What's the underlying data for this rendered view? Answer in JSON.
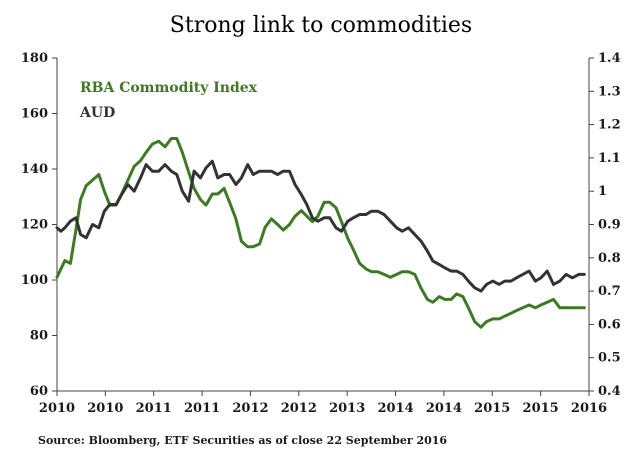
{
  "chart_data": {
    "type": "line",
    "title": "Strong link to commodities",
    "source": "Source: Bloomberg, ETF Securities as of close 22 September 2016",
    "x_tick_labels": [
      "2010",
      "2010",
      "2011",
      "2011",
      "2012",
      "2012",
      "2013",
      "2014",
      "2014",
      "2015",
      "2015",
      "2016"
    ],
    "xlim": [
      2010.0,
      2016.75
    ],
    "y_left": {
      "ylim": [
        60,
        180
      ],
      "ticks": [
        60,
        80,
        100,
        120,
        140,
        160,
        180
      ]
    },
    "y_right": {
      "ylim": [
        0.4,
        1.4
      ],
      "ticks": [
        0.4,
        0.5,
        0.6,
        0.7,
        0.8,
        0.9,
        1,
        1.1,
        1.2,
        1.3,
        1.4
      ]
    },
    "legend_position": "top-left",
    "grid": false,
    "series": [
      {
        "name": "RBA Commodity Index",
        "color": "#3e7a24",
        "axis": "left",
        "x": [
          2010.0,
          2010.05,
          2010.1,
          2010.17,
          2010.24,
          2010.3,
          2010.37,
          2010.45,
          2010.53,
          2010.6,
          2010.67,
          2010.75,
          2010.82,
          2010.9,
          2010.98,
          2011.06,
          2011.13,
          2011.21,
          2011.29,
          2011.37,
          2011.45,
          2011.52,
          2011.59,
          2011.67,
          2011.74,
          2011.82,
          2011.89,
          2011.97,
          2012.04,
          2012.12,
          2012.19,
          2012.27,
          2012.34,
          2012.42,
          2012.49,
          2012.57,
          2012.64,
          2012.72,
          2012.8,
          2012.87,
          2012.95,
          2013.02,
          2013.1,
          2013.17,
          2013.24,
          2013.31,
          2013.39,
          2013.46,
          2013.54,
          2013.61,
          2013.69,
          2013.76,
          2013.84,
          2013.92,
          2013.99,
          2014.07,
          2014.15,
          2014.23,
          2014.31,
          2014.38,
          2014.46,
          2014.54,
          2014.62,
          2014.7,
          2014.77,
          2014.85,
          2014.92,
          2015.0,
          2015.07,
          2015.15,
          2015.22,
          2015.3,
          2015.38,
          2015.45,
          2015.53,
          2015.61,
          2015.68,
          2015.76,
          2015.83,
          2015.91,
          2015.99,
          2016.07,
          2016.14,
          2016.22,
          2016.3,
          2016.38,
          2016.46,
          2016.54,
          2016.62,
          2016.69
        ],
        "values": [
          101,
          104,
          107,
          106,
          118,
          129,
          134,
          136,
          138,
          132,
          127,
          127,
          131,
          136,
          141,
          143,
          146,
          149,
          150,
          148,
          151,
          151,
          146,
          139,
          133,
          129,
          127,
          131,
          131,
          133,
          128,
          122,
          114,
          112,
          112,
          113,
          119,
          122,
          120,
          118,
          120,
          123,
          125,
          123,
          121,
          123,
          128,
          128,
          126,
          121,
          115,
          111,
          106,
          104,
          103,
          103,
          102,
          101,
          102,
          103,
          103,
          102,
          97,
          93,
          92,
          94,
          93,
          93,
          95,
          94,
          90,
          85,
          83,
          85,
          86,
          86,
          87,
          88,
          89,
          90,
          91,
          90,
          91,
          92,
          93,
          90,
          90,
          90,
          90,
          90
        ]
      },
      {
        "name": "AUD",
        "color": "#333333",
        "axis": "right",
        "x": [
          2010.0,
          2010.05,
          2010.1,
          2010.17,
          2010.24,
          2010.3,
          2010.37,
          2010.45,
          2010.53,
          2010.6,
          2010.67,
          2010.75,
          2010.82,
          2010.9,
          2010.98,
          2011.06,
          2011.13,
          2011.21,
          2011.29,
          2011.37,
          2011.45,
          2011.52,
          2011.59,
          2011.67,
          2011.74,
          2011.82,
          2011.89,
          2011.97,
          2012.04,
          2012.12,
          2012.19,
          2012.27,
          2012.34,
          2012.42,
          2012.49,
          2012.57,
          2012.64,
          2012.72,
          2012.8,
          2012.87,
          2012.95,
          2013.02,
          2013.1,
          2013.17,
          2013.24,
          2013.31,
          2013.39,
          2013.46,
          2013.54,
          2013.61,
          2013.69,
          2013.76,
          2013.84,
          2013.92,
          2013.99,
          2014.07,
          2014.15,
          2014.23,
          2014.31,
          2014.38,
          2014.46,
          2014.54,
          2014.62,
          2014.7,
          2014.77,
          2014.85,
          2014.92,
          2015.0,
          2015.07,
          2015.15,
          2015.22,
          2015.3,
          2015.38,
          2015.45,
          2015.53,
          2015.61,
          2015.68,
          2015.76,
          2015.83,
          2015.91,
          2015.99,
          2016.07,
          2016.14,
          2016.22,
          2016.3,
          2016.38,
          2016.46,
          2016.54,
          2016.62,
          2016.69
        ],
        "values": [
          0.89,
          0.88,
          0.89,
          0.91,
          0.92,
          0.87,
          0.86,
          0.9,
          0.89,
          0.94,
          0.96,
          0.96,
          0.99,
          1.02,
          1.0,
          1.04,
          1.08,
          1.06,
          1.06,
          1.08,
          1.06,
          1.05,
          1.0,
          0.97,
          1.06,
          1.04,
          1.07,
          1.09,
          1.04,
          1.05,
          1.05,
          1.02,
          1.04,
          1.08,
          1.05,
          1.06,
          1.06,
          1.06,
          1.05,
          1.06,
          1.06,
          1.02,
          0.99,
          0.96,
          0.92,
          0.91,
          0.92,
          0.92,
          0.89,
          0.88,
          0.91,
          0.92,
          0.93,
          0.93,
          0.94,
          0.94,
          0.93,
          0.91,
          0.89,
          0.88,
          0.89,
          0.87,
          0.85,
          0.82,
          0.79,
          0.78,
          0.77,
          0.76,
          0.76,
          0.75,
          0.73,
          0.71,
          0.7,
          0.72,
          0.73,
          0.72,
          0.73,
          0.73,
          0.74,
          0.75,
          0.76,
          0.73,
          0.74,
          0.76,
          0.72,
          0.73,
          0.75,
          0.74,
          0.75,
          0.75
        ]
      }
    ]
  }
}
